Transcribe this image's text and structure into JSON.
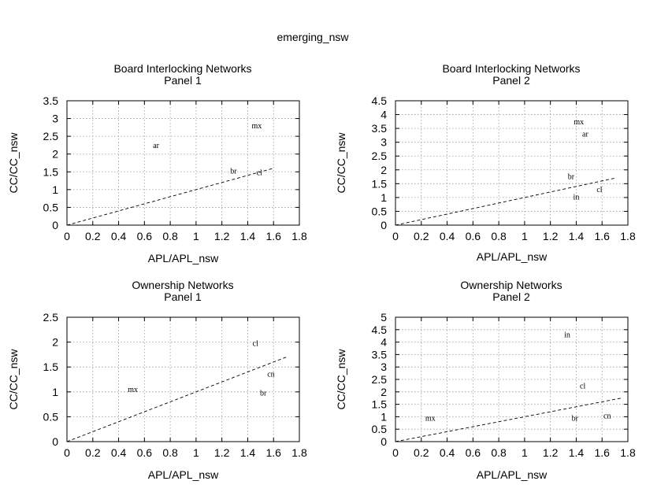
{
  "figure_title": "emerging_nsw",
  "chart_data": [
    {
      "type": "scatter",
      "title": "Board Interlocking Networks",
      "subtitle": "Panel 1",
      "xlabel": "APL/APL_nsw",
      "ylabel": "CC/CC_nsw",
      "xlim": [
        0,
        1.8
      ],
      "ylim": [
        0,
        3.5
      ],
      "xticks": [
        0,
        0.2,
        0.4,
        0.6,
        0.8,
        1,
        1.2,
        1.4,
        1.6,
        1.8
      ],
      "yticks": [
        0,
        0.5,
        1,
        1.5,
        2,
        2.5,
        3,
        3.5
      ],
      "grid": true,
      "points": [
        {
          "label": "ar",
          "x": 0.69,
          "y": 2.25
        },
        {
          "label": "mx",
          "x": 1.47,
          "y": 2.8
        },
        {
          "label": "br",
          "x": 1.29,
          "y": 1.53
        },
        {
          "label": "cl",
          "x": 1.49,
          "y": 1.48
        }
      ],
      "fit_line": {
        "x": [
          0,
          1.6
        ],
        "y": [
          0,
          1.6
        ]
      }
    },
    {
      "type": "scatter",
      "title": "Board Interlocking Networks",
      "subtitle": "Panel 2",
      "xlabel": "APL/APL_nsw",
      "ylabel": "CC/CC_nsw",
      "xlim": [
        0,
        1.8
      ],
      "ylim": [
        0,
        4.5
      ],
      "xticks": [
        0,
        0.2,
        0.4,
        0.6,
        0.8,
        1,
        1.2,
        1.4,
        1.6,
        1.8
      ],
      "yticks": [
        0,
        0.5,
        1,
        1.5,
        2,
        2.5,
        3,
        3.5,
        4,
        4.5
      ],
      "grid": true,
      "points": [
        {
          "label": "mx",
          "x": 1.42,
          "y": 3.75
        },
        {
          "label": "ar",
          "x": 1.47,
          "y": 3.3
        },
        {
          "label": "br",
          "x": 1.36,
          "y": 1.77
        },
        {
          "label": "cl",
          "x": 1.58,
          "y": 1.3
        },
        {
          "label": "in",
          "x": 1.4,
          "y": 1.03
        }
      ],
      "fit_line": {
        "x": [
          0,
          1.7
        ],
        "y": [
          0,
          1.7
        ]
      }
    },
    {
      "type": "scatter",
      "title": "Ownership Networks",
      "subtitle": "Panel 1",
      "xlabel": "APL/APL_nsw",
      "ylabel": "CC/CC_nsw",
      "xlim": [
        0,
        1.8
      ],
      "ylim": [
        0,
        2.5
      ],
      "xticks": [
        0,
        0.2,
        0.4,
        0.6,
        0.8,
        1,
        1.2,
        1.4,
        1.6,
        1.8
      ],
      "yticks": [
        0,
        0.5,
        1,
        1.5,
        2,
        2.5
      ],
      "grid": true,
      "points": [
        {
          "label": "cl",
          "x": 1.46,
          "y": 1.98
        },
        {
          "label": "cn",
          "x": 1.58,
          "y": 1.36
        },
        {
          "label": "mx",
          "x": 0.51,
          "y": 1.05
        },
        {
          "label": "br",
          "x": 1.52,
          "y": 0.98
        }
      ],
      "fit_line": {
        "x": [
          0,
          1.7
        ],
        "y": [
          0,
          1.7
        ]
      }
    },
    {
      "type": "scatter",
      "title": "Ownership Networks",
      "subtitle": "Panel 2",
      "xlabel": "APL/APL_nsw",
      "ylabel": "CC/CC_nsw",
      "xlim": [
        0,
        1.8
      ],
      "ylim": [
        0,
        5
      ],
      "xticks": [
        0,
        0.2,
        0.4,
        0.6,
        0.8,
        1,
        1.2,
        1.4,
        1.6,
        1.8
      ],
      "yticks": [
        0,
        0.5,
        1,
        1.5,
        2,
        2.5,
        3,
        3.5,
        4,
        4.5,
        5
      ],
      "grid": true,
      "points": [
        {
          "label": "in",
          "x": 1.33,
          "y": 4.3
        },
        {
          "label": "cl",
          "x": 1.45,
          "y": 2.25
        },
        {
          "label": "mx",
          "x": 0.27,
          "y": 0.95
        },
        {
          "label": "br",
          "x": 1.39,
          "y": 0.95
        },
        {
          "label": "cn",
          "x": 1.64,
          "y": 1.05
        }
      ],
      "fit_line": {
        "x": [
          0,
          1.75
        ],
        "y": [
          0,
          1.75
        ]
      }
    }
  ]
}
